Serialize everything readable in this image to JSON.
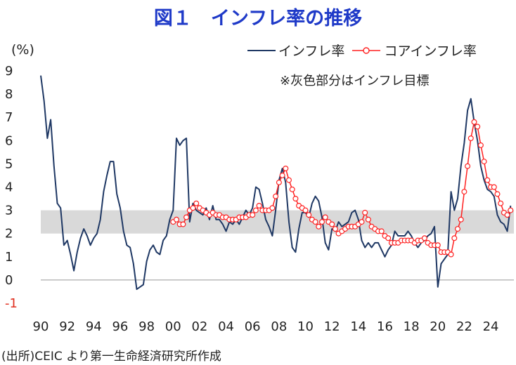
{
  "chart_data": {
    "type": "line",
    "title": "図１　インフレ率の推移",
    "ylabel": "(%)",
    "ylim": [
      -1,
      9
    ],
    "y_ticks": [
      9,
      8,
      7,
      6,
      5,
      4,
      3,
      2,
      1,
      0,
      -1
    ],
    "xlim": [
      1990,
      2025.75
    ],
    "x_tick_labels": [
      "90",
      "92",
      "94",
      "96",
      "98",
      "00",
      "02",
      "04",
      "06",
      "08",
      "10",
      "12",
      "14",
      "16",
      "18",
      "20",
      "22",
      "24"
    ],
    "grid": false,
    "legend_position": "top-right",
    "target_band": [
      2,
      3
    ],
    "annotation": "※灰色部分はインフレ目標",
    "source": "(出所)CEIC より第一生命経済研究所作成",
    "colors": {
      "inflation": "#1f3864",
      "core": "#ff2020",
      "band": "#d9d9d9"
    },
    "series": [
      {
        "name": "インフレ率",
        "x": [
          1990,
          1990.25,
          1990.5,
          1990.75,
          1991,
          1991.25,
          1991.5,
          1991.75,
          1992,
          1992.25,
          1992.5,
          1992.75,
          1993,
          1993.25,
          1993.5,
          1993.75,
          1994,
          1994.25,
          1994.5,
          1994.75,
          1995,
          1995.25,
          1995.5,
          1995.75,
          1996,
          1996.25,
          1996.5,
          1996.75,
          1997,
          1997.25,
          1997.5,
          1997.75,
          1998,
          1998.25,
          1998.5,
          1998.75,
          1999,
          1999.25,
          1999.5,
          1999.75,
          2000,
          2000.25,
          2000.5,
          2000.75,
          2001,
          2001.25,
          2001.5,
          2001.75,
          2002,
          2002.25,
          2002.5,
          2002.75,
          2003,
          2003.25,
          2003.5,
          2003.75,
          2004,
          2004.25,
          2004.5,
          2004.75,
          2005,
          2005.25,
          2005.5,
          2005.75,
          2006,
          2006.25,
          2006.5,
          2006.75,
          2007,
          2007.25,
          2007.5,
          2007.75,
          2008,
          2008.25,
          2008.5,
          2008.75,
          2009,
          2009.25,
          2009.5,
          2009.75,
          2010,
          2010.25,
          2010.5,
          2010.75,
          2011,
          2011.25,
          2011.5,
          2011.75,
          2012,
          2012.25,
          2012.5,
          2012.75,
          2013,
          2013.25,
          2013.5,
          2013.75,
          2014,
          2014.25,
          2014.5,
          2014.75,
          2015,
          2015.25,
          2015.5,
          2015.75,
          2016,
          2016.25,
          2016.5,
          2016.75,
          2017,
          2017.25,
          2017.5,
          2017.75,
          2018,
          2018.25,
          2018.5,
          2018.75,
          2019,
          2019.25,
          2019.5,
          2019.75,
          2020,
          2020.25,
          2020.5,
          2020.75,
          2021,
          2021.25,
          2021.5,
          2021.75,
          2022,
          2022.25,
          2022.5,
          2022.75,
          2023,
          2023.25,
          2023.5,
          2023.75,
          2024,
          2024.25,
          2024.5,
          2024.75,
          2025,
          2025.25,
          2025.5
        ],
        "values": [
          8.8,
          7.7,
          6.1,
          6.9,
          4.9,
          3.3,
          3.1,
          1.5,
          1.7,
          1.1,
          0.4,
          1.2,
          1.8,
          2.2,
          1.9,
          1.5,
          1.8,
          2.0,
          2.6,
          3.8,
          4.5,
          5.1,
          5.1,
          3.7,
          3.1,
          2.1,
          1.5,
          1.4,
          0.7,
          -0.4,
          -0.3,
          -0.2,
          0.8,
          1.3,
          1.5,
          1.2,
          1.1,
          1.7,
          1.9,
          2.6,
          3.0,
          6.1,
          5.8,
          6.0,
          6.1,
          2.5,
          3.3,
          3.0,
          2.9,
          2.8,
          3.1,
          2.6,
          3.2,
          2.6,
          2.6,
          2.4,
          2.1,
          2.5,
          2.4,
          2.6,
          2.4,
          2.7,
          3.0,
          2.8,
          3.1,
          4.0,
          3.9,
          3.3,
          2.6,
          2.3,
          1.9,
          3.0,
          4.3,
          4.8,
          4.2,
          2.5,
          1.4,
          1.2,
          2.2,
          2.9,
          2.9,
          2.7,
          3.3,
          3.6,
          3.4,
          2.7,
          1.6,
          1.3,
          2.2,
          2.1,
          2.5,
          2.3,
          2.4,
          2.5,
          2.9,
          3.0,
          2.6,
          1.7,
          1.4,
          1.6,
          1.4,
          1.6,
          1.6,
          1.3,
          1.0,
          1.3,
          1.5,
          2.1,
          1.9,
          1.9,
          1.9,
          2.1,
          1.9,
          1.6,
          1.4,
          1.6,
          1.7,
          1.9,
          2.0,
          2.3,
          -0.3,
          0.7,
          0.9,
          1.1,
          3.8,
          3.0,
          3.5,
          4.9,
          5.9,
          7.3,
          7.8,
          6.8,
          6.0,
          4.9,
          4.3,
          3.9,
          3.8,
          3.6,
          2.8,
          2.5,
          2.4,
          2.1,
          3.2
        ]
      },
      {
        "name": "コアインフレ率",
        "x": [
          2000,
          2000.25,
          2000.5,
          2000.75,
          2001,
          2001.25,
          2001.5,
          2001.75,
          2002,
          2002.25,
          2002.5,
          2002.75,
          2003,
          2003.25,
          2003.5,
          2003.75,
          2004,
          2004.25,
          2004.5,
          2004.75,
          2005,
          2005.25,
          2005.5,
          2005.75,
          2006,
          2006.25,
          2006.5,
          2006.75,
          2007,
          2007.25,
          2007.5,
          2007.75,
          2008,
          2008.25,
          2008.5,
          2008.75,
          2009,
          2009.25,
          2009.5,
          2009.75,
          2010,
          2010.25,
          2010.5,
          2010.75,
          2011,
          2011.25,
          2011.5,
          2011.75,
          2012,
          2012.25,
          2012.5,
          2012.75,
          2013,
          2013.25,
          2013.5,
          2013.75,
          2014,
          2014.25,
          2014.5,
          2014.75,
          2015,
          2015.25,
          2015.5,
          2015.75,
          2016,
          2016.25,
          2016.5,
          2016.75,
          2017,
          2017.25,
          2017.5,
          2017.75,
          2018,
          2018.25,
          2018.5,
          2018.75,
          2019,
          2019.25,
          2019.5,
          2019.75,
          2020,
          2020.25,
          2020.5,
          2020.75,
          2021,
          2021.25,
          2021.5,
          2021.75,
          2022,
          2022.25,
          2022.5,
          2022.75,
          2023,
          2023.25,
          2023.5,
          2023.75,
          2024,
          2024.25,
          2024.5,
          2024.75,
          2025,
          2025.25,
          2025.5
        ],
        "values": [
          2.5,
          2.6,
          2.4,
          2.4,
          2.7,
          3.0,
          3.1,
          3.3,
          3.1,
          3.0,
          2.9,
          2.8,
          2.9,
          2.8,
          2.8,
          2.7,
          2.7,
          2.6,
          2.6,
          2.6,
          2.7,
          2.7,
          2.7,
          2.8,
          2.8,
          3.0,
          3.2,
          3.0,
          3.0,
          3.0,
          3.1,
          3.6,
          4.2,
          4.5,
          4.8,
          4.3,
          3.9,
          3.5,
          3.2,
          3.1,
          3.0,
          2.8,
          2.6,
          2.5,
          2.3,
          2.5,
          2.7,
          2.5,
          2.4,
          2.2,
          2.0,
          2.1,
          2.2,
          2.3,
          2.3,
          2.3,
          2.4,
          2.5,
          2.9,
          2.6,
          2.3,
          2.2,
          2.1,
          2.1,
          1.9,
          1.8,
          1.6,
          1.6,
          1.6,
          1.7,
          1.7,
          1.7,
          1.7,
          1.6,
          1.7,
          1.7,
          1.8,
          1.6,
          1.5,
          1.5,
          1.5,
          1.2,
          1.2,
          1.2,
          1.1,
          1.8,
          2.2,
          2.6,
          3.8,
          4.9,
          6.1,
          6.8,
          6.6,
          5.8,
          5.1,
          4.3,
          4.0,
          4.0,
          3.7,
          3.3,
          2.9,
          2.8,
          3.0
        ]
      }
    ]
  }
}
